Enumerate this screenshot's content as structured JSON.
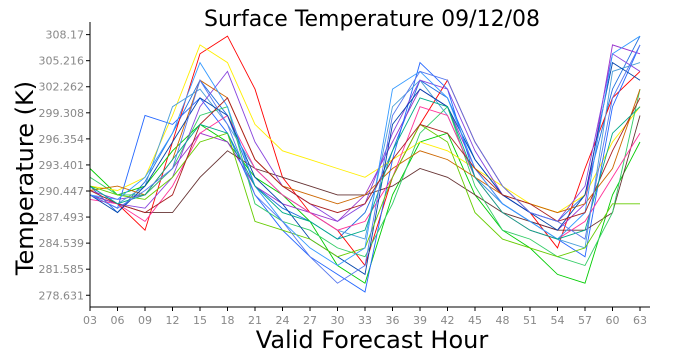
{
  "chart_data": {
    "type": "line",
    "title": "Surface Temperature 09/12/08",
    "xlabel": "Valid Forecast Hour",
    "ylabel": "Temperature (K)",
    "x": [
      3,
      6,
      9,
      12,
      15,
      18,
      21,
      24,
      27,
      30,
      33,
      36,
      39,
      42,
      45,
      48,
      51,
      54,
      57,
      60,
      63
    ],
    "x_tick_labels": [
      "03",
      "06",
      "09",
      "12",
      "15",
      "18",
      "21",
      "24",
      "27",
      "30",
      "33",
      "36",
      "39",
      "42",
      "45",
      "48",
      "51",
      "54",
      "57",
      "60",
      "63"
    ],
    "y_ticks": [
      278.631,
      281.585,
      284.539,
      287.493,
      290.447,
      293.401,
      296.354,
      299.308,
      302.262,
      305.216,
      308.17
    ],
    "y_tick_labels": [
      "278.631",
      "281.585",
      "284.539",
      "287.493",
      "290.447",
      "293.401",
      "296.354",
      "299.308",
      "302.262",
      "305.216",
      "308.17"
    ],
    "xlim": [
      3,
      63
    ],
    "ylim": [
      277.3,
      309.6
    ],
    "grid": false,
    "legend": "none",
    "series": [
      {
        "color": "#1f6fe0",
        "values": [
          291.0,
          288.0,
          291.5,
          297.0,
          303.0,
          299.0,
          291.0,
          288.5,
          287.0,
          285.0,
          288.0,
          295.0,
          303.0,
          301.0,
          294.0,
          290.0,
          288.0,
          287.0,
          290.0,
          302.0,
          308.0
        ]
      },
      {
        "color": "#ff0000",
        "values": [
          290.0,
          289.0,
          286.0,
          296.0,
          306.0,
          308.0,
          302.0,
          292.0,
          288.0,
          286.0,
          282.0,
          292.0,
          298.0,
          303.0,
          296.0,
          291.0,
          288.0,
          284.0,
          293.0,
          301.0,
          304.0
        ]
      },
      {
        "color": "#00cc00",
        "values": [
          293.0,
          290.0,
          291.0,
          295.0,
          298.0,
          296.0,
          292.0,
          290.0,
          287.0,
          282.0,
          280.0,
          290.0,
          296.0,
          297.0,
          290.0,
          286.0,
          284.0,
          281.0,
          280.0,
          290.0,
          296.0
        ]
      },
      {
        "color": "#ffee00",
        "values": [
          291.0,
          290.5,
          292.0,
          299.0,
          307.0,
          305.0,
          298.0,
          295.0,
          294.0,
          293.0,
          292.0,
          294.0,
          296.0,
          295.0,
          293.0,
          291.0,
          289.0,
          288.0,
          290.0,
          296.0,
          300.0
        ]
      },
      {
        "color": "#9933cc",
        "values": [
          290.5,
          289.5,
          290.0,
          293.0,
          297.0,
          296.0,
          291.0,
          289.0,
          288.0,
          287.0,
          290.0,
          296.0,
          302.0,
          300.0,
          293.0,
          289.0,
          287.0,
          286.0,
          289.0,
          307.0,
          306.0
        ]
      },
      {
        "color": "#2266ff",
        "values": [
          290.0,
          288.5,
          299.0,
          298.0,
          301.0,
          297.0,
          290.0,
          286.0,
          283.0,
          281.0,
          279.0,
          294.0,
          305.0,
          302.0,
          292.0,
          289.0,
          287.0,
          285.0,
          283.0,
          300.0,
          307.0
        ]
      },
      {
        "color": "#663333",
        "values": [
          290.0,
          289.0,
          288.0,
          288.0,
          292.0,
          295.0,
          293.0,
          292.0,
          291.0,
          290.0,
          290.0,
          291.0,
          293.0,
          292.0,
          290.0,
          288.0,
          287.0,
          286.0,
          286.0,
          288.0,
          299.0
        ]
      },
      {
        "color": "#4a9fd8",
        "values": [
          291.0,
          289.0,
          291.0,
          300.0,
          302.0,
          298.0,
          293.0,
          290.0,
          288.0,
          286.0,
          285.0,
          300.0,
          303.0,
          299.0,
          292.0,
          289.0,
          287.0,
          285.0,
          284.0,
          304.0,
          305.0
        ]
      },
      {
        "color": "#33cc66",
        "values": [
          292.0,
          290.0,
          290.0,
          293.0,
          299.0,
          300.0,
          289.0,
          287.0,
          286.0,
          284.0,
          283.0,
          289.0,
          297.0,
          300.0,
          291.0,
          286.0,
          285.0,
          283.0,
          282.0,
          288.0,
          302.0
        ]
      },
      {
        "color": "#8844dd",
        "values": [
          290.0,
          289.0,
          288.5,
          292.0,
          300.0,
          304.0,
          296.0,
          291.0,
          289.0,
          287.0,
          289.0,
          297.0,
          303.0,
          302.0,
          295.0,
          290.0,
          288.0,
          287.0,
          291.0,
          306.0,
          304.0
        ]
      },
      {
        "color": "#cc6600",
        "values": [
          290.5,
          291.0,
          290.0,
          294.0,
          303.0,
          301.0,
          294.0,
          291.0,
          290.0,
          289.0,
          290.0,
          293.0,
          295.0,
          294.0,
          292.0,
          290.0,
          289.0,
          288.0,
          289.0,
          293.0,
          302.0
        ]
      },
      {
        "color": "#ff3399",
        "values": [
          289.5,
          289.0,
          287.0,
          291.0,
          297.0,
          299.0,
          293.0,
          290.0,
          288.0,
          286.0,
          287.0,
          292.0,
          300.0,
          299.0,
          292.0,
          288.0,
          286.0,
          285.0,
          287.0,
          292.0,
          297.0
        ]
      },
      {
        "color": "#0044aa",
        "values": [
          290.0,
          288.0,
          291.0,
          296.0,
          301.0,
          299.0,
          292.0,
          289.0,
          285.0,
          283.0,
          281.0,
          298.0,
          302.0,
          300.0,
          294.0,
          290.0,
          288.0,
          286.0,
          290.0,
          305.0,
          303.0
        ]
      },
      {
        "color": "#66cc00",
        "values": [
          291.0,
          290.0,
          289.5,
          292.0,
          296.0,
          297.0,
          287.0,
          286.0,
          285.0,
          283.0,
          284.0,
          292.0,
          298.0,
          296.0,
          288.0,
          285.0,
          284.0,
          283.0,
          284.0,
          289.0,
          289.0
        ]
      },
      {
        "color": "#3399ff",
        "values": [
          290.0,
          289.5,
          292.0,
          297.0,
          305.0,
          300.0,
          291.0,
          287.0,
          284.0,
          282.0,
          284.0,
          302.0,
          304.0,
          301.0,
          293.0,
          289.0,
          287.0,
          285.0,
          288.0,
          306.0,
          308.0
        ]
      },
      {
        "color": "#aa2222",
        "values": [
          290.5,
          289.0,
          288.0,
          290.0,
          298.0,
          301.0,
          294.0,
          291.0,
          289.0,
          288.0,
          289.0,
          294.0,
          298.0,
          297.0,
          293.0,
          290.0,
          289.0,
          287.0,
          288.0,
          295.0,
          301.0
        ]
      },
      {
        "color": "#00aa88",
        "values": [
          291.0,
          289.0,
          290.0,
          294.0,
          298.0,
          297.0,
          291.0,
          288.0,
          287.0,
          285.0,
          286.0,
          295.0,
          301.0,
          300.0,
          292.0,
          288.0,
          286.0,
          285.0,
          286.0,
          297.0,
          300.0
        ]
      },
      {
        "color": "#5577ee",
        "values": [
          290.0,
          288.5,
          290.5,
          293.0,
          303.0,
          298.0,
          290.0,
          287.0,
          283.0,
          280.0,
          282.0,
          299.0,
          304.0,
          303.0,
          296.0,
          291.0,
          288.0,
          287.0,
          285.0,
          301.0,
          307.0
        ]
      }
    ]
  }
}
